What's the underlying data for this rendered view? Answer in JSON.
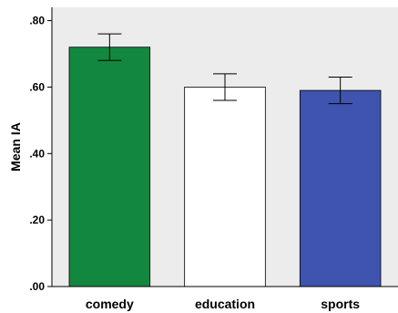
{
  "chart_data": {
    "type": "bar",
    "title": "",
    "xlabel": "",
    "ylabel": "Mean IA",
    "ylim": [
      0,
      0.84
    ],
    "yticks": [
      {
        "value": 0.0,
        "label": ".00"
      },
      {
        "value": 0.2,
        "label": ".20"
      },
      {
        "value": 0.4,
        "label": ".40"
      },
      {
        "value": 0.6,
        "label": ".60"
      },
      {
        "value": 0.8,
        "label": ".80"
      }
    ],
    "categories": [
      "comedy",
      "education",
      "sports"
    ],
    "values": [
      0.72,
      0.6,
      0.59
    ],
    "error_low": [
      0.68,
      0.56,
      0.55
    ],
    "error_high": [
      0.76,
      0.64,
      0.63
    ],
    "colors": [
      "#12873f",
      "#ffffff",
      "#3f54ae"
    ],
    "plot_background": "#ececec",
    "grid": false,
    "legend": "none"
  }
}
